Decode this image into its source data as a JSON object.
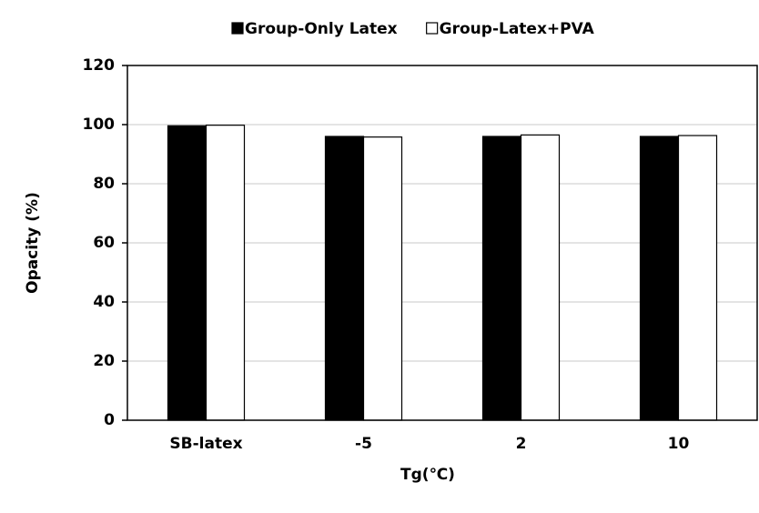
{
  "chart_data": {
    "type": "bar",
    "x_label": "Tg(℃)",
    "y_label": "Opacity (%)",
    "categories": [
      "SB-latex",
      "-5",
      "2",
      "10"
    ],
    "series": [
      {
        "name": "Group-Only Latex",
        "color": "#000000",
        "values": [
          99.6,
          96,
          96,
          96
        ]
      },
      {
        "name": "Group-Latex+PVA",
        "color": "#ffffff",
        "values": [
          99.8,
          95.8,
          96.5,
          96.3
        ]
      }
    ],
    "ylim": [
      0,
      120
    ],
    "yticks": [
      0,
      20,
      40,
      60,
      80,
      100,
      120
    ],
    "grid": true,
    "legend": "top"
  }
}
